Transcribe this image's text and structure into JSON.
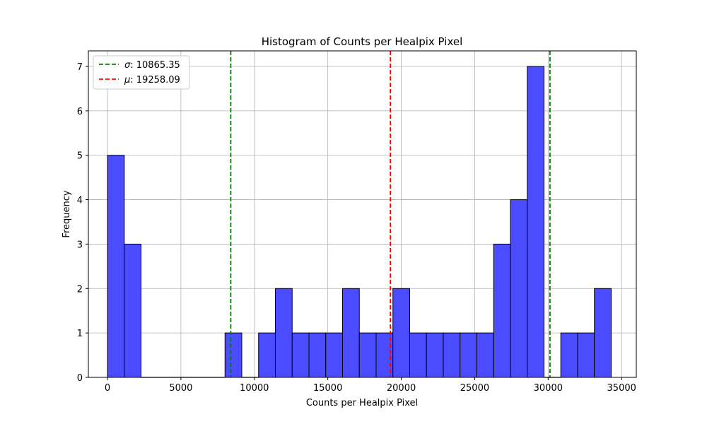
{
  "chart_data": {
    "type": "bar",
    "title": "Histogram of Counts per Healpix Pixel",
    "xlabel": "Counts per Healpix Pixel",
    "ylabel": "Frequency",
    "xlim": [
      -1300,
      36000
    ],
    "ylim": [
      0,
      7.35
    ],
    "grid": true,
    "bar_color": "#4b4bff",
    "bar_edge_color": "#000000",
    "bins": [
      {
        "x0": 0,
        "x1": 1143,
        "count": 5
      },
      {
        "x0": 1143,
        "x1": 2286,
        "count": 3
      },
      {
        "x0": 2286,
        "x1": 3429,
        "count": 0
      },
      {
        "x0": 3429,
        "x1": 4572,
        "count": 0
      },
      {
        "x0": 4572,
        "x1": 5715,
        "count": 0
      },
      {
        "x0": 5715,
        "x1": 6858,
        "count": 0
      },
      {
        "x0": 6858,
        "x1": 8001,
        "count": 0
      },
      {
        "x0": 8001,
        "x1": 9144,
        "count": 1
      },
      {
        "x0": 9144,
        "x1": 10287,
        "count": 0
      },
      {
        "x0": 10287,
        "x1": 11430,
        "count": 1
      },
      {
        "x0": 11430,
        "x1": 12573,
        "count": 2
      },
      {
        "x0": 12573,
        "x1": 13716,
        "count": 1
      },
      {
        "x0": 13716,
        "x1": 14859,
        "count": 1
      },
      {
        "x0": 14859,
        "x1": 16002,
        "count": 1
      },
      {
        "x0": 16002,
        "x1": 17145,
        "count": 2
      },
      {
        "x0": 17145,
        "x1": 18288,
        "count": 1
      },
      {
        "x0": 18288,
        "x1": 19431,
        "count": 1
      },
      {
        "x0": 19431,
        "x1": 20574,
        "count": 2
      },
      {
        "x0": 20574,
        "x1": 21717,
        "count": 1
      },
      {
        "x0": 21717,
        "x1": 22860,
        "count": 1
      },
      {
        "x0": 22860,
        "x1": 24003,
        "count": 1
      },
      {
        "x0": 24003,
        "x1": 25146,
        "count": 1
      },
      {
        "x0": 25146,
        "x1": 26289,
        "count": 1
      },
      {
        "x0": 26289,
        "x1": 27432,
        "count": 3
      },
      {
        "x0": 27432,
        "x1": 28575,
        "count": 4
      },
      {
        "x0": 28575,
        "x1": 29718,
        "count": 7
      },
      {
        "x0": 29718,
        "x1": 30861,
        "count": 0
      },
      {
        "x0": 30861,
        "x1": 32004,
        "count": 1
      },
      {
        "x0": 32004,
        "x1": 33147,
        "count": 1
      },
      {
        "x0": 33147,
        "x1": 34290,
        "count": 2
      }
    ],
    "x_ticks": [
      0,
      5000,
      10000,
      15000,
      20000,
      25000,
      30000,
      35000
    ],
    "x_tick_labels": [
      "0",
      "5000",
      "10000",
      "15000",
      "20000",
      "25000",
      "30000",
      "35000"
    ],
    "y_ticks": [
      0,
      1,
      2,
      3,
      4,
      5,
      6,
      7
    ],
    "y_tick_labels": [
      "0",
      "1",
      "2",
      "3",
      "4",
      "5",
      "6",
      "7"
    ],
    "vlines": [
      {
        "x": 8393,
        "color": "#008000",
        "legend": false
      },
      {
        "x": 30124,
        "color": "#008000",
        "legend": false
      },
      {
        "x": 19258.09,
        "color": "#ff0000",
        "legend": false
      }
    ],
    "legend": {
      "placement": "top-left",
      "entries": [
        {
          "symbol": "σ",
          "label": ": 10865.35",
          "color": "#008000"
        },
        {
          "symbol": "μ",
          "label": ": 19258.09",
          "color": "#ff0000"
        }
      ]
    }
  }
}
